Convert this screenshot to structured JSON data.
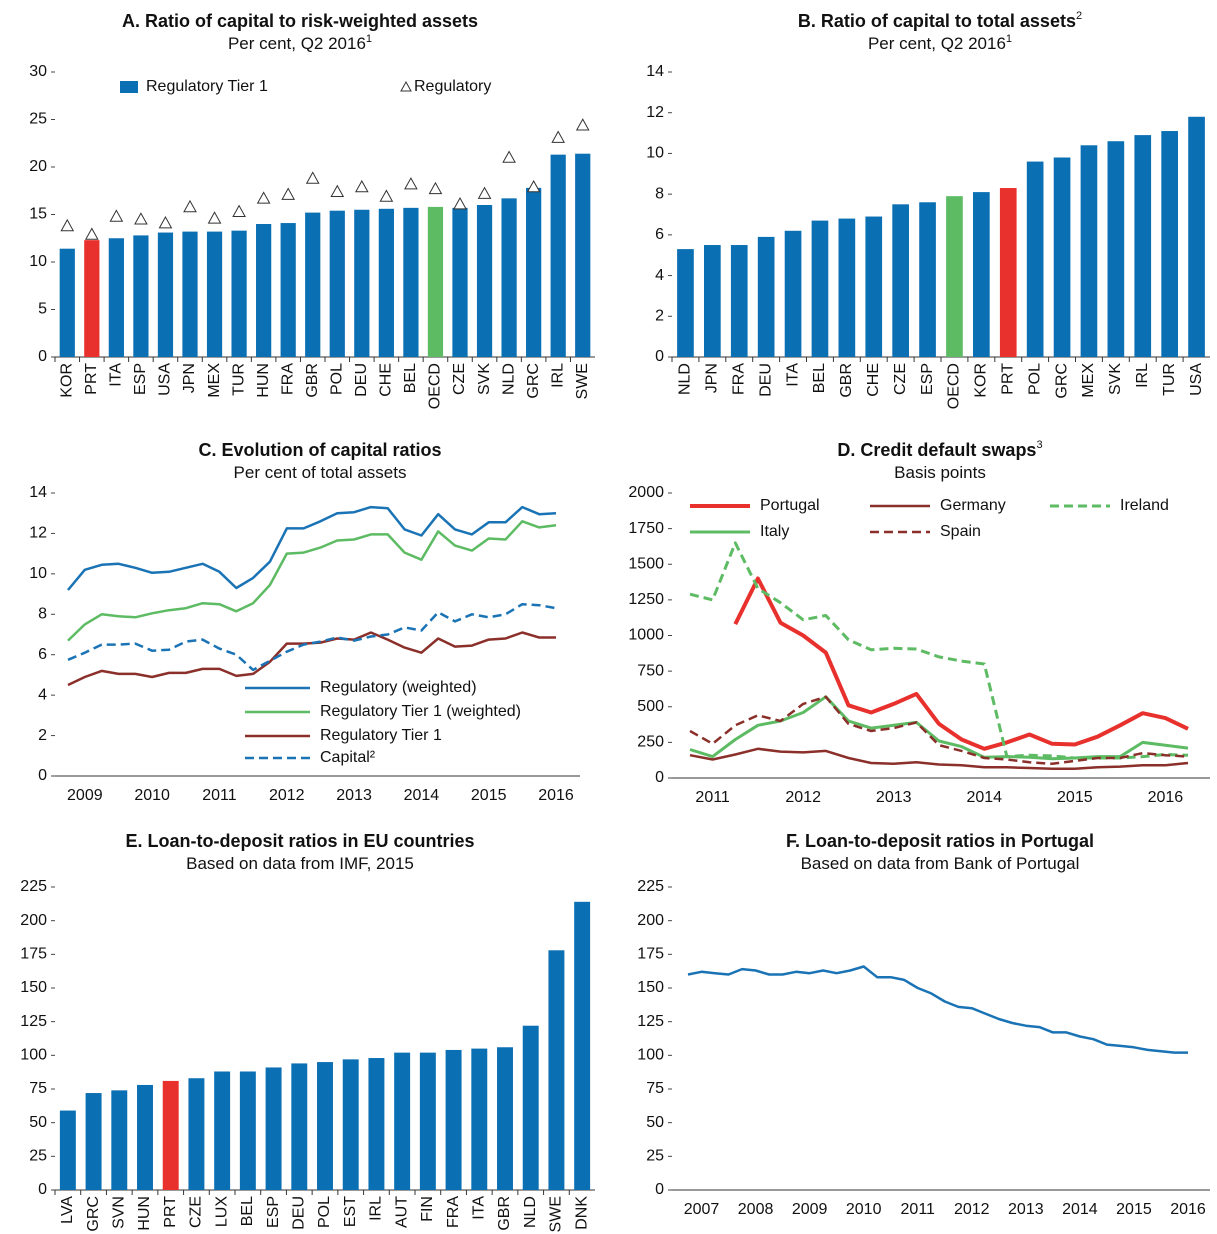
{
  "chart_data": [
    {
      "type": "bar",
      "title": "A. Ratio of capital to risk-weighted assets",
      "subtitle": "Per cent, Q2 2016",
      "subtitle_note": "1",
      "categories": [
        "KOR",
        "PRT",
        "ITA",
        "ESP",
        "USA",
        "JPN",
        "MEX",
        "TUR",
        "HUN",
        "FRA",
        "GBR",
        "POL",
        "DEU",
        "CHE",
        "BEL",
        "OECD",
        "CZE",
        "SVK",
        "NLD",
        "GRC",
        "IRL",
        "SWE"
      ],
      "series": [
        {
          "name": "Regulatory Tier 1",
          "color": "#0b6fb3",
          "values": [
            11.4,
            12.3,
            12.5,
            12.8,
            13.1,
            13.2,
            13.2,
            13.3,
            14.0,
            14.1,
            15.2,
            15.4,
            15.5,
            15.6,
            15.7,
            15.8,
            15.7,
            16.0,
            16.7,
            17.8,
            21.3,
            21.4
          ],
          "point_colors": [
            "#0b6fb3",
            "#e8302c",
            "#0b6fb3",
            "#0b6fb3",
            "#0b6fb3",
            "#0b6fb3",
            "#0b6fb3",
            "#0b6fb3",
            "#0b6fb3",
            "#0b6fb3",
            "#0b6fb3",
            "#0b6fb3",
            "#0b6fb3",
            "#0b6fb3",
            "#0b6fb3",
            "#5dbb63",
            "#0b6fb3",
            "#0b6fb3",
            "#0b6fb3",
            "#0b6fb3",
            "#0b6fb3",
            "#0b6fb3"
          ]
        },
        {
          "name": "Regulatory",
          "marker": "triangle",
          "color": "#333333",
          "values": [
            13.8,
            12.9,
            14.8,
            14.5,
            14.1,
            15.8,
            14.6,
            15.3,
            16.7,
            17.1,
            18.8,
            17.4,
            17.9,
            16.9,
            18.2,
            17.7,
            16.1,
            17.2,
            21.0,
            17.9,
            23.1,
            24.4
          ]
        }
      ],
      "ylim": [
        0,
        30
      ],
      "yticks": [
        0,
        5,
        10,
        15,
        20,
        25,
        30
      ]
    },
    {
      "type": "bar",
      "title": "B. Ratio of capital to total assets",
      "title_note": "2",
      "subtitle": "Per cent, Q2 2016",
      "subtitle_note": "1",
      "categories": [
        "NLD",
        "JPN",
        "FRA",
        "DEU",
        "ITA",
        "BEL",
        "GBR",
        "CHE",
        "CZE",
        "ESP",
        "OECD",
        "KOR",
        "PRT",
        "POL",
        "GRC",
        "MEX",
        "SVK",
        "IRL",
        "TUR",
        "USA"
      ],
      "series": [
        {
          "color": "#0b6fb3",
          "values": [
            5.3,
            5.5,
            5.5,
            5.9,
            6.2,
            6.7,
            6.8,
            6.9,
            7.5,
            7.6,
            7.9,
            8.1,
            8.3,
            9.6,
            9.8,
            10.4,
            10.6,
            10.9,
            11.1,
            11.8
          ],
          "point_colors": [
            "#0b6fb3",
            "#0b6fb3",
            "#0b6fb3",
            "#0b6fb3",
            "#0b6fb3",
            "#0b6fb3",
            "#0b6fb3",
            "#0b6fb3",
            "#0b6fb3",
            "#0b6fb3",
            "#5dbb63",
            "#0b6fb3",
            "#e8302c",
            "#0b6fb3",
            "#0b6fb3",
            "#0b6fb3",
            "#0b6fb3",
            "#0b6fb3",
            "#0b6fb3",
            "#0b6fb3"
          ]
        }
      ],
      "ylim": [
        0,
        14
      ],
      "yticks": [
        0,
        2,
        4,
        6,
        8,
        10,
        12,
        14
      ]
    },
    {
      "type": "line",
      "title": "C. Evolution of capital ratios",
      "subtitle": "Per cent of total assets",
      "categories": [
        null,
        "2009",
        null,
        null,
        null,
        "2010",
        null,
        null,
        null,
        "2011",
        null,
        null,
        null,
        "2012",
        null,
        null,
        null,
        "2013",
        null,
        null,
        null,
        "2014",
        null,
        null,
        null,
        "2015",
        null,
        null,
        null,
        "2016"
      ],
      "series": [
        {
          "name": "Regulatory (weighted)",
          "color": "#1a73b5",
          "values": [
            9.2,
            10.2,
            10.45,
            10.5,
            10.3,
            10.05,
            10.1,
            10.3,
            10.5,
            10.1,
            9.3,
            9.8,
            10.6,
            12.25,
            12.25,
            12.6,
            13.0,
            13.05,
            13.3,
            13.25,
            12.2,
            11.9,
            12.95,
            12.2,
            11.95,
            12.55,
            12.55,
            13.3,
            12.95,
            13.0
          ]
        },
        {
          "name": "Regulatory Tier 1 (weighted)",
          "color": "#5dbb63",
          "values": [
            6.7,
            7.5,
            8.0,
            7.9,
            7.85,
            8.05,
            8.2,
            8.3,
            8.55,
            8.5,
            8.15,
            8.55,
            9.45,
            11.0,
            11.05,
            11.3,
            11.65,
            11.7,
            11.95,
            11.95,
            11.05,
            10.7,
            12.1,
            11.4,
            11.15,
            11.75,
            11.7,
            12.6,
            12.3,
            12.4
          ]
        },
        {
          "name": "Regulatory Tier 1",
          "color": "#8b2f2a",
          "values": [
            4.5,
            4.9,
            5.2,
            5.05,
            5.05,
            4.9,
            5.1,
            5.1,
            5.3,
            5.3,
            4.95,
            5.05,
            5.65,
            6.55,
            6.55,
            6.6,
            6.8,
            6.75,
            7.1,
            6.75,
            6.35,
            6.1,
            6.8,
            6.4,
            6.45,
            6.75,
            6.8,
            7.1,
            6.85,
            6.85
          ]
        },
        {
          "name": "Capital²",
          "color": "#1a73b5",
          "dashed": true,
          "values": [
            5.75,
            6.1,
            6.5,
            6.5,
            6.55,
            6.2,
            6.25,
            6.65,
            6.75,
            6.3,
            6.0,
            5.25,
            5.7,
            6.15,
            6.5,
            6.65,
            6.85,
            6.7,
            6.9,
            7.0,
            7.35,
            7.2,
            8.1,
            7.65,
            8.0,
            7.85,
            8.0,
            8.5,
            8.45,
            8.3
          ]
        }
      ],
      "ylim": [
        0,
        14
      ],
      "yticks": [
        0,
        2,
        4,
        6,
        8,
        10,
        12,
        14
      ]
    },
    {
      "type": "line",
      "title": "D. Credit default swaps",
      "title_note": "3",
      "subtitle": "Basis points",
      "categories": [
        null,
        "2011",
        null,
        null,
        null,
        "2012",
        null,
        null,
        null,
        "2013",
        null,
        null,
        null,
        "2014",
        null,
        null,
        null,
        "2015",
        null,
        null,
        null,
        "2016",
        null
      ],
      "series": [
        {
          "name": "Portugal",
          "color": "#e8302c",
          "width": 4,
          "values": [
            null,
            null,
            1080,
            1400,
            1090,
            1000,
            880,
            510,
            460,
            520,
            590,
            380,
            270,
            205,
            250,
            305,
            240,
            235,
            290,
            370,
            455,
            420,
            345
          ]
        },
        {
          "name": "Germany",
          "color": "#8b2f2a",
          "values": [
            160,
            130,
            165,
            205,
            185,
            180,
            190,
            140,
            105,
            100,
            110,
            95,
            90,
            75,
            75,
            70,
            65,
            65,
            75,
            80,
            90,
            90,
            105
          ]
        },
        {
          "name": "Ireland",
          "color": "#5dbb63",
          "dashed": true,
          "width": 3,
          "values": [
            1290,
            1250,
            1650,
            1330,
            1230,
            1110,
            1140,
            970,
            900,
            910,
            905,
            850,
            820,
            800,
            150,
            160,
            155,
            140,
            140,
            140,
            150,
            165,
            160
          ]
        },
        {
          "name": "Italy",
          "color": "#5dbb63",
          "width": 3,
          "values": [
            200,
            150,
            270,
            370,
            400,
            460,
            570,
            400,
            350,
            370,
            390,
            260,
            220,
            145,
            150,
            145,
            135,
            140,
            150,
            150,
            250,
            230,
            210
          ]
        },
        {
          "name": "Spain",
          "color": "#8b2f2a",
          "dashed": true,
          "values": [
            330,
            240,
            370,
            440,
            400,
            520,
            570,
            380,
            330,
            350,
            390,
            230,
            190,
            140,
            130,
            110,
            100,
            120,
            140,
            140,
            175,
            160,
            150
          ]
        }
      ],
      "ylim": [
        0,
        2000
      ],
      "yticks": [
        0,
        250,
        500,
        750,
        1000,
        1250,
        1500,
        1750,
        2000
      ]
    },
    {
      "type": "bar",
      "title": "E. Loan-to-deposit ratios in EU countries",
      "subtitle": "Based on data from IMF, 2015",
      "categories": [
        "LVA",
        "GRC",
        "SVN",
        "HUN",
        "PRT",
        "CZE",
        "LUX",
        "BEL",
        "ESP",
        "DEU",
        "POL",
        "EST",
        "IRL",
        "AUT",
        "FIN",
        "FRA",
        "ITA",
        "GBR",
        "NLD",
        "SWE",
        "DNK"
      ],
      "series": [
        {
          "color": "#0b6fb3",
          "values": [
            59,
            72,
            74,
            78,
            81,
            83,
            88,
            88,
            91,
            94,
            95,
            97,
            98,
            102,
            102,
            104,
            105,
            106,
            122,
            178,
            214
          ],
          "point_colors": [
            "#0b6fb3",
            "#0b6fb3",
            "#0b6fb3",
            "#0b6fb3",
            "#e8302c",
            "#0b6fb3",
            "#0b6fb3",
            "#0b6fb3",
            "#0b6fb3",
            "#0b6fb3",
            "#0b6fb3",
            "#0b6fb3",
            "#0b6fb3",
            "#0b6fb3",
            "#0b6fb3",
            "#0b6fb3",
            "#0b6fb3",
            "#0b6fb3",
            "#0b6fb3",
            "#0b6fb3",
            "#0b6fb3"
          ]
        }
      ],
      "ylim": [
        0,
        225
      ],
      "yticks": [
        0,
        25,
        50,
        75,
        100,
        125,
        150,
        175,
        200,
        225
      ]
    },
    {
      "type": "line",
      "title": "F. Loan-to-deposit ratios in Portugal",
      "subtitle": "Based on data from Bank of Portugal",
      "categories": [
        null,
        "2007",
        null,
        null,
        null,
        "2008",
        null,
        null,
        null,
        "2009",
        null,
        null,
        null,
        "2010",
        null,
        null,
        null,
        "2011",
        null,
        null,
        null,
        "2012",
        null,
        null,
        null,
        "2013",
        null,
        null,
        null,
        "2014",
        null,
        null,
        null,
        "2015",
        null,
        null,
        null,
        "2016"
      ],
      "series": [
        {
          "color": "#1a73b5",
          "values": [
            160,
            162,
            161,
            160,
            164,
            163,
            160,
            160,
            162,
            161,
            163,
            161,
            163,
            166,
            158,
            158,
            156,
            150,
            146,
            140,
            136,
            135,
            131,
            127,
            124,
            122,
            121,
            117,
            117,
            114,
            112,
            108,
            107,
            106,
            104,
            103,
            102,
            102
          ]
        }
      ],
      "ylim": [
        0,
        225
      ],
      "yticks": [
        0,
        25,
        50,
        75,
        100,
        125,
        150,
        175,
        200,
        225
      ]
    }
  ]
}
